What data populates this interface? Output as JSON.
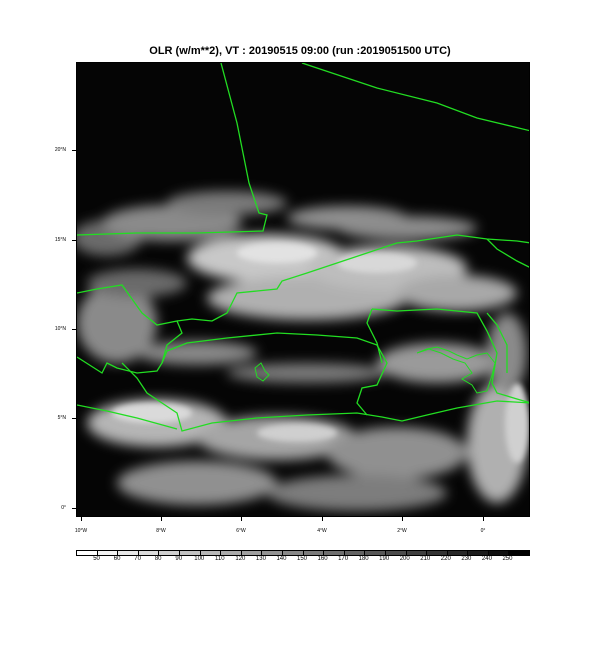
{
  "title": "OLR (w/m**2), VT : 20190515  09:00 (run :2019051500 UTC)",
  "axes": {
    "lat_labels": [
      "20°N",
      "15°N",
      "10°N",
      "5°N",
      "0°"
    ],
    "lon_labels": [
      "10°W",
      "8°W",
      "6°W",
      "4°W",
      "2°W",
      "0°"
    ]
  },
  "colorbar": {
    "labels": [
      "50",
      "60",
      "70",
      "80",
      "90",
      "100",
      "110",
      "120",
      "130",
      "140",
      "150",
      "160",
      "170",
      "180",
      "190",
      "200",
      "210",
      "220",
      "230",
      "240",
      "250"
    ],
    "colors": [
      "#ffffff",
      "#f3f3f3",
      "#e7e7e7",
      "#dbdbdb",
      "#cfcfcf",
      "#c3c3c3",
      "#b7b7b7",
      "#ababab",
      "#9f9f9f",
      "#939393",
      "#878787",
      "#7b7b7b",
      "#6f6f6f",
      "#636363",
      "#575757",
      "#4b4b4b",
      "#3f3f3f",
      "#333333",
      "#272727",
      "#1b1b1b",
      "#0f0f0f",
      "#000000"
    ]
  },
  "colors": {
    "border": "#22dd22",
    "background": "#050505"
  }
}
